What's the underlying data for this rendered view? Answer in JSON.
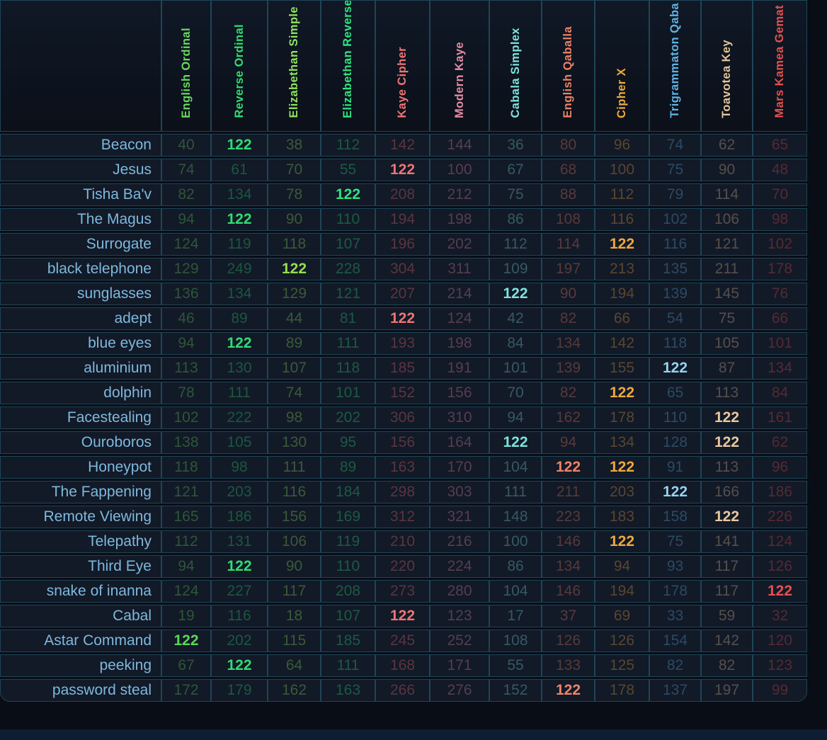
{
  "table": {
    "corner_label": "",
    "columns": [
      {
        "label": "English Ordinal",
        "color": "#68d95b",
        "hl": "#58d957"
      },
      {
        "label": "Reverse Ordinal",
        "color": "#2fdd72",
        "hl": "#2fdd72"
      },
      {
        "label": "Elizabethan Simple",
        "color": "#8fe35c",
        "hl": "#93e04d"
      },
      {
        "label": "Elizabethan Reverse",
        "color": "#2ee47e",
        "hl": "#2ee47e"
      },
      {
        "label": "Kaye Cipher",
        "color": "#ef7474",
        "hl": "#ef7474"
      },
      {
        "label": "Modern Kaye",
        "color": "#e38da4",
        "hl": "#e38da4"
      },
      {
        "label": "Cabala Simplex",
        "color": "#7ee3de",
        "hl": "#7ee3de"
      },
      {
        "label": "English Qaballa",
        "color": "#ec8164",
        "hl": "#ee8468"
      },
      {
        "label": "Cipher X",
        "color": "#eda93f",
        "hl": "#efa93c"
      },
      {
        "label": "Trigrammaton Qaba",
        "color": "#5fb3e4",
        "hl": "#94d4ef"
      },
      {
        "label": "Toavotea Key",
        "color": "#e3c497",
        "hl": "#e8c99e"
      },
      {
        "label": "Mars Kamea Gemat",
        "color": "#e4514f",
        "hl": "#e4514f"
      }
    ],
    "rows": [
      {
        "name": "Beacon",
        "values": [
          40,
          122,
          38,
          112,
          142,
          144,
          36,
          80,
          96,
          74,
          62,
          65
        ],
        "highlights": [
          1
        ]
      },
      {
        "name": "Jesus",
        "values": [
          74,
          61,
          70,
          55,
          122,
          100,
          67,
          68,
          100,
          75,
          90,
          48
        ],
        "highlights": [
          4
        ]
      },
      {
        "name": "Tisha Ba'v",
        "values": [
          82,
          134,
          78,
          122,
          208,
          212,
          75,
          88,
          112,
          79,
          114,
          70
        ],
        "highlights": [
          3
        ]
      },
      {
        "name": "The Magus",
        "values": [
          94,
          122,
          90,
          110,
          194,
          198,
          86,
          108,
          116,
          102,
          106,
          98
        ],
        "highlights": [
          1
        ]
      },
      {
        "name": "Surrogate",
        "values": [
          124,
          119,
          118,
          107,
          196,
          202,
          112,
          114,
          122,
          116,
          121,
          102
        ],
        "highlights": [
          8
        ]
      },
      {
        "name": "black telephone",
        "values": [
          129,
          249,
          122,
          228,
          304,
          311,
          109,
          197,
          213,
          135,
          211,
          178
        ],
        "highlights": [
          2
        ]
      },
      {
        "name": "sunglasses",
        "values": [
          136,
          134,
          129,
          121,
          207,
          214,
          122,
          90,
          194,
          139,
          145,
          76
        ],
        "highlights": [
          6
        ]
      },
      {
        "name": "adept",
        "values": [
          46,
          89,
          44,
          81,
          122,
          124,
          42,
          82,
          66,
          54,
          75,
          66
        ],
        "highlights": [
          4
        ]
      },
      {
        "name": "blue eyes",
        "values": [
          94,
          122,
          89,
          111,
          193,
          198,
          84,
          134,
          142,
          118,
          105,
          101
        ],
        "highlights": [
          1
        ]
      },
      {
        "name": "aluminium",
        "values": [
          113,
          130,
          107,
          118,
          185,
          191,
          101,
          139,
          155,
          122,
          87,
          134
        ],
        "highlights": [
          9
        ]
      },
      {
        "name": "dolphin",
        "values": [
          78,
          111,
          74,
          101,
          152,
          156,
          70,
          82,
          122,
          65,
          113,
          84
        ],
        "highlights": [
          8
        ]
      },
      {
        "name": "Facestealing",
        "values": [
          102,
          222,
          98,
          202,
          306,
          310,
          94,
          162,
          178,
          110,
          122,
          161
        ],
        "highlights": [
          10
        ]
      },
      {
        "name": "Ouroboros",
        "values": [
          138,
          105,
          130,
          95,
          156,
          164,
          122,
          94,
          134,
          128,
          122,
          62
        ],
        "highlights": [
          6,
          10
        ]
      },
      {
        "name": "Honeypot",
        "values": [
          118,
          98,
          111,
          89,
          163,
          170,
          104,
          122,
          122,
          91,
          113,
          96
        ],
        "highlights": [
          7,
          8
        ]
      },
      {
        "name": "The Fappening",
        "values": [
          121,
          203,
          116,
          184,
          298,
          303,
          111,
          211,
          203,
          122,
          166,
          186
        ],
        "highlights": [
          9
        ]
      },
      {
        "name": "Remote Viewing",
        "values": [
          165,
          186,
          156,
          169,
          312,
          321,
          148,
          223,
          183,
          158,
          122,
          226
        ],
        "highlights": [
          10
        ]
      },
      {
        "name": "Telepathy",
        "values": [
          112,
          131,
          106,
          119,
          210,
          216,
          100,
          146,
          122,
          75,
          141,
          124
        ],
        "highlights": [
          8
        ]
      },
      {
        "name": "Third Eye",
        "values": [
          94,
          122,
          90,
          110,
          220,
          224,
          86,
          134,
          94,
          93,
          117,
          126
        ],
        "highlights": [
          1
        ]
      },
      {
        "name": "snake of inanna",
        "values": [
          124,
          227,
          117,
          208,
          273,
          280,
          104,
          146,
          194,
          178,
          117,
          122
        ],
        "highlights": [
          11
        ]
      },
      {
        "name": "Cabal",
        "values": [
          19,
          116,
          18,
          107,
          122,
          123,
          17,
          37,
          69,
          33,
          59,
          32
        ],
        "highlights": [
          4
        ]
      },
      {
        "name": "Astar Command",
        "values": [
          122,
          202,
          115,
          185,
          245,
          252,
          108,
          126,
          126,
          154,
          142,
          120
        ],
        "highlights": [
          0
        ]
      },
      {
        "name": "peeking",
        "values": [
          67,
          122,
          64,
          111,
          168,
          171,
          55,
          133,
          125,
          82,
          82,
          123
        ],
        "highlights": [
          1
        ]
      },
      {
        "name": "password steal",
        "values": [
          172,
          179,
          162,
          163,
          266,
          276,
          152,
          122,
          178,
          137,
          197,
          99
        ],
        "highlights": [
          7
        ]
      }
    ]
  },
  "colors": {
    "row_label": "#7db9dd",
    "cell_background": "#121927",
    "grid_border": "#1e4557",
    "page_background": "#080d16",
    "bottom_strip": "#0f1d33"
  }
}
